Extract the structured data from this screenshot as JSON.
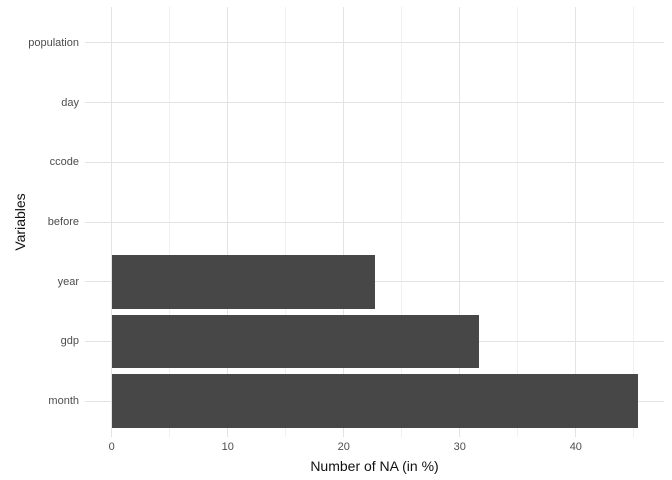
{
  "figure": {
    "background_color": "#ffffff",
    "bar_color": "#474747",
    "grid_major_color": "#e3e3e3",
    "grid_minor_color": "#f0f0f0",
    "axis_text_color": "#4d4d4d",
    "axis_title_color": "#111111"
  },
  "chart_data": {
    "type": "bar",
    "orientation": "horizontal",
    "title": "",
    "xlabel": "Number of NA (in %)",
    "ylabel": "Variables",
    "categories": [
      "population",
      "day",
      "ccode",
      "before",
      "year",
      "gdp",
      "month"
    ],
    "values": [
      0,
      0,
      0,
      0,
      22.7,
      31.7,
      45.4
    ],
    "x_major_ticks": [
      0,
      10,
      20,
      30,
      40
    ],
    "x_minor_ticks": [
      5,
      15,
      25,
      35,
      45
    ],
    "xlim": [
      -2.3,
      47.6
    ],
    "grid": true,
    "legend": false
  }
}
